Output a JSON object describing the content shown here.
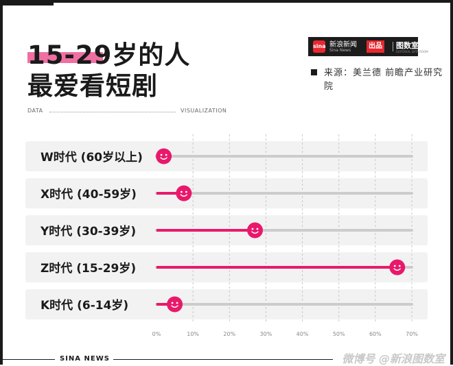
{
  "title": {
    "line1": "15-29岁的人",
    "line2": "最爱看短剧"
  },
  "brand": {
    "logo": "sina",
    "name": "新浪新闻",
    "sub": "Sina News",
    "badge": "出品",
    "right": "图数室",
    "right_sub": "EDITORIAL DATA ROOM"
  },
  "source": "来源：美兰德 前瞻产业研究院",
  "header_left": "DATA",
  "header_right": "VISUALIZATION",
  "footer": "SINA NEWS",
  "watermark": "微博号 @新浪图数室",
  "colors": {
    "accent": "#e8196b",
    "track": "#cccccc",
    "row_bg": "#f2f2f2"
  },
  "chart_data": {
    "type": "bar",
    "categories": [
      "W时代 (60岁以上)",
      "X时代 (40-59岁)",
      "Y时代 (30-39岁)",
      "Z时代 (15-29岁)",
      "K时代 (6-14岁)"
    ],
    "values": [
      2,
      7.5,
      27,
      66,
      5
    ],
    "xlim": [
      0,
      70
    ],
    "xticks": [
      "0%",
      "10%",
      "20%",
      "30%",
      "40%",
      "50%",
      "60%",
      "70%"
    ],
    "grid": true
  }
}
